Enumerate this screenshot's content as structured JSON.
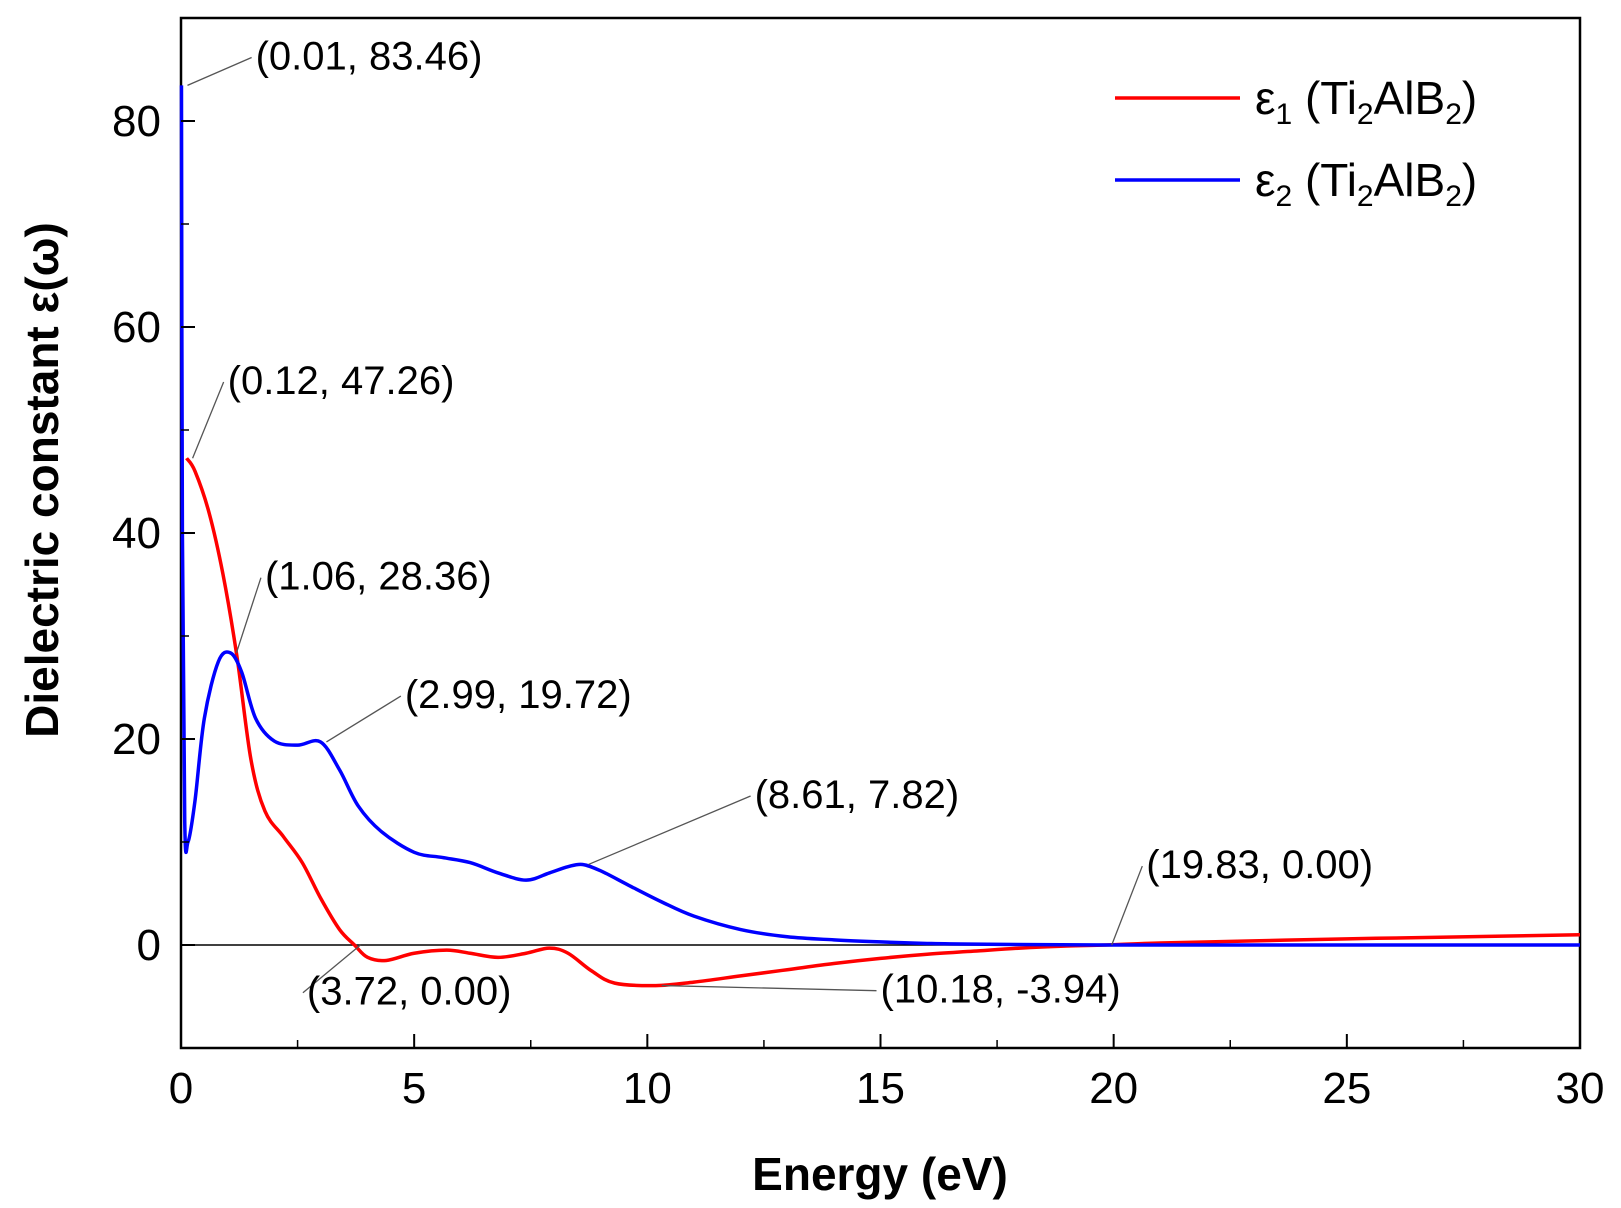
{
  "chart_data": {
    "type": "line",
    "title": "",
    "xlabel": "Energy (eV)",
    "ylabel": "Dielectric constant ε(ω)",
    "xlim": [
      0,
      30
    ],
    "ylim": [
      -10,
      90
    ],
    "x_ticks": [
      0,
      5,
      10,
      15,
      20,
      25,
      30
    ],
    "y_ticks": [
      0,
      20,
      40,
      60,
      80
    ],
    "zero_line": true,
    "legend_position": "top-right",
    "series": [
      {
        "name": "ε1 (Ti2AlB2)",
        "legend_main": "ε",
        "legend_sub1": "1",
        "legend_mid": " (Ti",
        "legend_sub2": "2",
        "legend_mid2": "AlB",
        "legend_sub3": "2",
        "legend_end": ")",
        "color": "#ff0000",
        "x": [
          0.12,
          0.3,
          0.6,
          0.9,
          1.2,
          1.5,
          1.8,
          2.2,
          2.6,
          3.0,
          3.4,
          3.72,
          4.0,
          4.4,
          5.0,
          5.7,
          6.2,
          6.8,
          7.4,
          7.9,
          8.3,
          8.8,
          9.3,
          10.18,
          11,
          12,
          13,
          14,
          15,
          16,
          17,
          18,
          19,
          19.83,
          21,
          23,
          25,
          27,
          30
        ],
        "values": [
          47.26,
          46,
          42,
          36,
          28,
          18,
          13,
          10.5,
          8,
          4.5,
          1.5,
          0,
          -1.2,
          -1.5,
          -0.8,
          -0.5,
          -0.8,
          -1.2,
          -0.8,
          -0.3,
          -0.8,
          -2.5,
          -3.7,
          -3.94,
          -3.6,
          -3.0,
          -2.4,
          -1.8,
          -1.3,
          -0.9,
          -0.6,
          -0.3,
          -0.1,
          0,
          0.2,
          0.4,
          0.6,
          0.75,
          1.0
        ]
      },
      {
        "name": "ε2 (Ti2AlB2)",
        "legend_main": "ε",
        "legend_sub1": "2",
        "legend_mid": " (Ti",
        "legend_sub2": "2",
        "legend_mid2": "AlB",
        "legend_sub3": "2",
        "legend_end": ")",
        "color": "#0000ff",
        "x": [
          0.01,
          0.03,
          0.08,
          0.15,
          0.3,
          0.5,
          0.8,
          1.06,
          1.3,
          1.6,
          2.0,
          2.5,
          2.99,
          3.4,
          3.8,
          4.3,
          5.0,
          5.6,
          6.2,
          6.8,
          7.4,
          7.9,
          8.3,
          8.61,
          9.0,
          9.6,
          10.3,
          11,
          12,
          13,
          14,
          15,
          16,
          17,
          19.83,
          25,
          30
        ],
        "values": [
          83.46,
          40,
          12,
          10,
          14,
          22,
          27.5,
          28.36,
          26.5,
          22,
          19.8,
          19.4,
          19.72,
          17,
          13.5,
          11,
          9,
          8.5,
          8,
          7,
          6.3,
          7,
          7.6,
          7.82,
          7.2,
          5.8,
          4.2,
          2.8,
          1.5,
          0.8,
          0.5,
          0.3,
          0.15,
          0.08,
          0,
          0,
          0
        ]
      }
    ],
    "annotations": [
      {
        "text": "(0.01, 83.46)",
        "x": 0.01,
        "y": 83.46,
        "tx": 1.6,
        "ty": 85.0
      },
      {
        "text": "(0.12, 47.26)",
        "x": 0.12,
        "y": 47.26,
        "tx": 1.0,
        "ty": 53.5
      },
      {
        "text": "(1.06, 28.36)",
        "x": 1.06,
        "y": 28.36,
        "tx": 1.8,
        "ty": 34.5
      },
      {
        "text": "(2.99, 19.72)",
        "x": 2.99,
        "y": 19.72,
        "tx": 4.8,
        "ty": 23.0
      },
      {
        "text": "(8.61, 7.82)",
        "x": 8.61,
        "y": 7.82,
        "tx": 12.3,
        "ty": 13.3
      },
      {
        "text": "(19.83, 0.00)",
        "x": 19.83,
        "y": 0.0,
        "tx": 20.7,
        "ty": 6.5
      },
      {
        "text": "(3.72, 0.00)",
        "x": 3.72,
        "y": 0.0,
        "tx": 2.7,
        "ty": -5.8
      },
      {
        "text": "(10.18, -3.94)",
        "x": 10.18,
        "y": -3.94,
        "tx": 15.0,
        "ty": -5.6
      }
    ]
  }
}
